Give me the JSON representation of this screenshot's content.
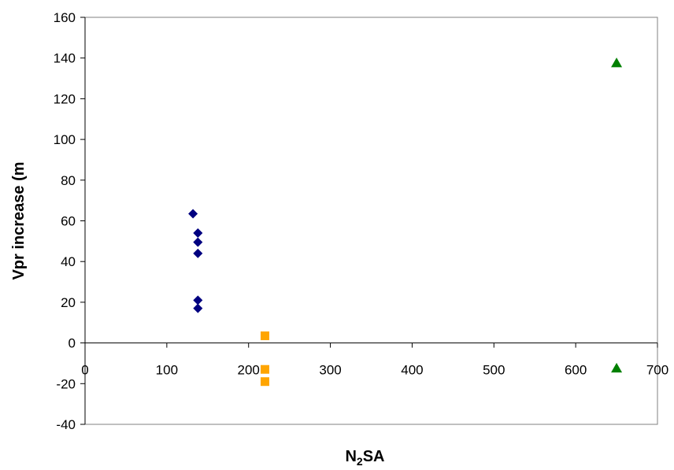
{
  "chart_data": {
    "type": "scatter",
    "title": "",
    "xlabel": "N2SA",
    "xlabel_main": "N",
    "xlabel_sub": "2",
    "xlabel_rest": "SA",
    "ylabel": "Vpr increase (m",
    "xlim": [
      0,
      700
    ],
    "ylim": [
      -40,
      160
    ],
    "x_ticks": [
      "0",
      "100",
      "200",
      "300",
      "400",
      "500",
      "600",
      "700"
    ],
    "y_ticks": [
      "-40",
      "-20",
      "0",
      "20",
      "40",
      "60",
      "80",
      "100",
      "120",
      "140",
      "160"
    ],
    "grid": false,
    "legend": "none",
    "series": [
      {
        "marker": "diamond",
        "color": "#000080",
        "points": [
          [
            132,
            63.5
          ],
          [
            138,
            54
          ],
          [
            138,
            49.5
          ],
          [
            138,
            44
          ],
          [
            138,
            21
          ],
          [
            138,
            17
          ]
        ]
      },
      {
        "marker": "square",
        "color": "#ffa500",
        "points": [
          [
            220,
            3.5
          ],
          [
            220,
            -13
          ],
          [
            220,
            -19
          ]
        ]
      },
      {
        "marker": "triangle",
        "color": "#008000",
        "points": [
          [
            650,
            137.5
          ],
          [
            650,
            -12.5
          ]
        ]
      }
    ]
  }
}
